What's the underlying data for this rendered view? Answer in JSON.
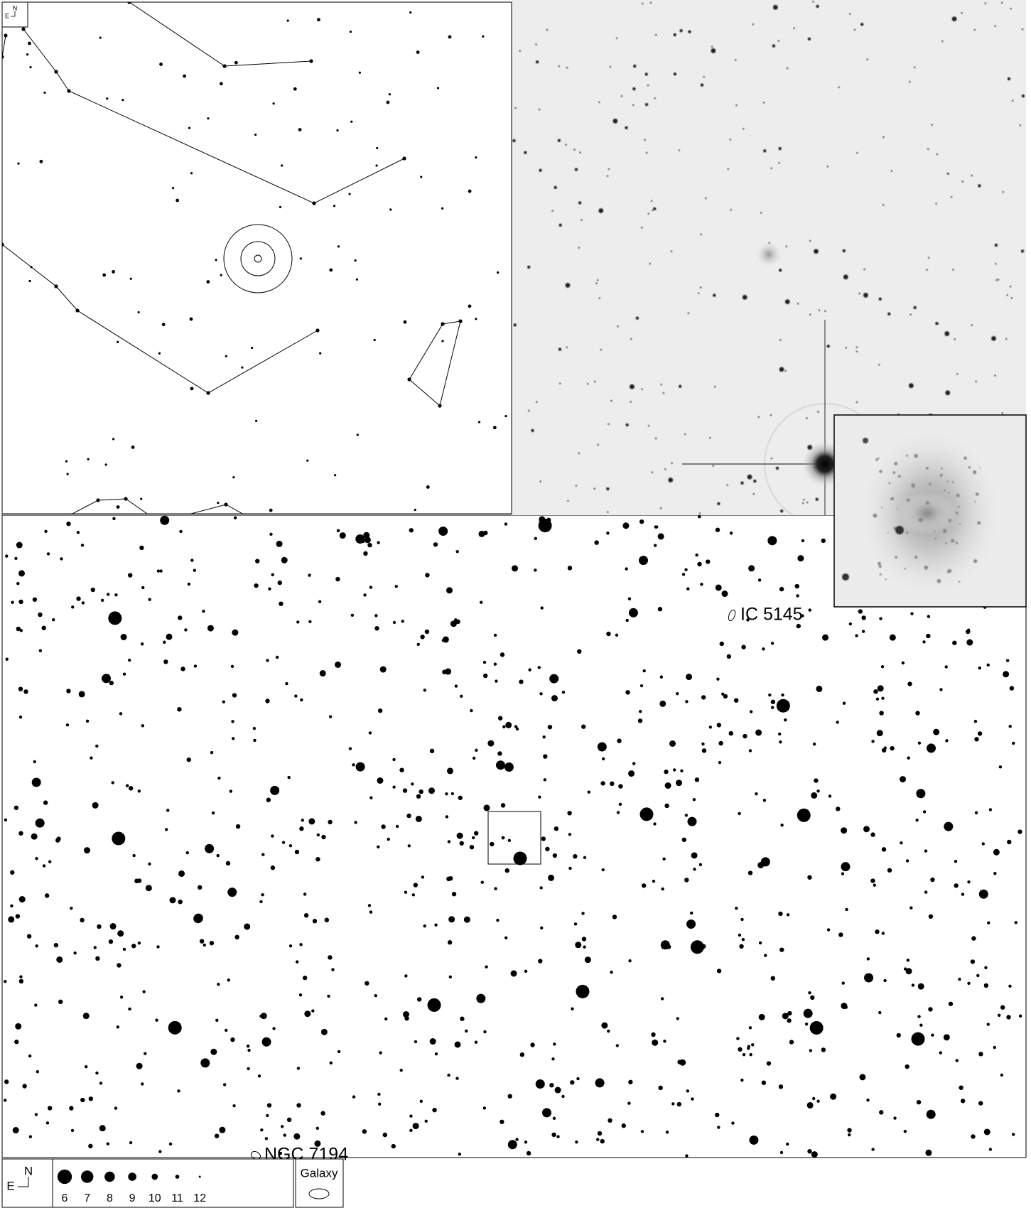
{
  "finder": {
    "compass": {
      "north": "N",
      "east": "E"
    }
  },
  "labels": [
    {
      "text": "IC 5145"
    },
    {
      "text": "NGC 7194"
    }
  ],
  "legend": {
    "compass": {
      "north": "N",
      "east": "E"
    },
    "magnitudes": [
      6,
      7,
      8,
      9,
      10,
      11,
      12
    ],
    "galaxy": "Galaxy"
  }
}
